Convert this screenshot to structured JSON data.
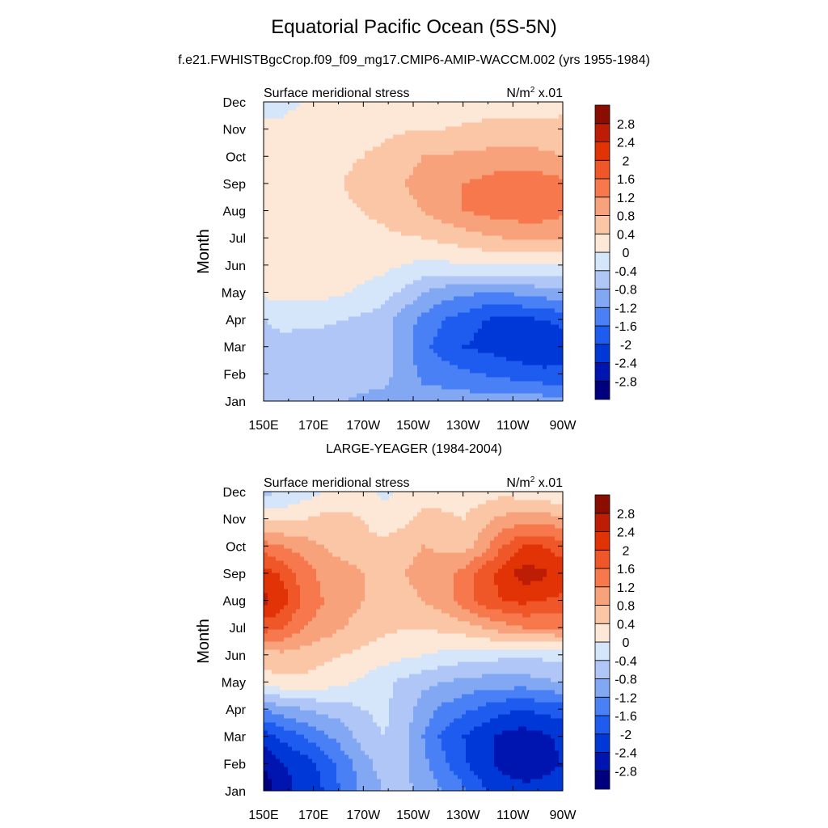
{
  "titles": {
    "main": "Equatorial Pacific Ocean (5S-5N)",
    "subtitle": "f.e21.FWHISTBgcCrop.f09_f09_mg17.CMIP6-AMIP-WACCM.002 (yrs 1955-1984)",
    "second_panel": "LARGE-YEAGER (1984-2004)"
  },
  "chart_data": [
    {
      "type": "heatmap",
      "panel_label_left": "Surface meridional stress",
      "panel_label_right_base": "N/m",
      "panel_label_right_exp": "2",
      "panel_label_right_scale": " x.01",
      "ylabel": "Month",
      "xlabel": "",
      "x_ticks": [
        "150E",
        "170E",
        "170W",
        "150W",
        "130W",
        "110W",
        "90W"
      ],
      "x_values": [
        150,
        170,
        190,
        210,
        230,
        250,
        270
      ],
      "y_ticks": [
        "Jan",
        "Feb",
        "Mar",
        "Apr",
        "May",
        "Jun",
        "Jul",
        "Aug",
        "Sep",
        "Oct",
        "Nov",
        "Dec"
      ],
      "colorbar_labels": [
        "2.8",
        "2.4",
        "2",
        "1.6",
        "1.2",
        "0.8",
        "0.4",
        "0",
        "-0.4",
        "-0.8",
        "-1.2",
        "-1.6",
        "-2",
        "-2.4",
        "-2.8"
      ],
      "z": [
        [
          -0.6,
          -0.7,
          -0.8,
          -0.8,
          -0.8,
          -0.9,
          -0.9,
          -1.0,
          -1.0,
          -1.0,
          -1.0,
          -1.0,
          -1.0,
          -1.0,
          -1.0,
          -1.1
        ],
        [
          -0.7,
          -0.7,
          -0.7,
          -0.6,
          -0.6,
          -0.6,
          -0.7,
          -0.9,
          -1.3,
          -1.4,
          -1.5,
          -1.6,
          -1.7,
          -1.8,
          -1.9,
          -1.9
        ],
        [
          -0.6,
          -0.5,
          -0.6,
          -0.7,
          -0.6,
          -0.5,
          -0.6,
          -1.0,
          -1.5,
          -1.8,
          -2.0,
          -2.1,
          -2.2,
          -2.3,
          -2.3,
          -2.2
        ],
        [
          -0.4,
          -0.3,
          -0.3,
          -0.3,
          -0.4,
          -0.5,
          -0.6,
          -1.0,
          -1.3,
          -1.6,
          -1.8,
          -2.0,
          -2.1,
          -2.1,
          -2.0,
          -1.9
        ],
        [
          0.1,
          0.1,
          0.1,
          0.1,
          0.05,
          -0.1,
          -0.2,
          -0.5,
          -0.8,
          -1.0,
          -1.1,
          -1.2,
          -1.2,
          -1.1,
          -1.0,
          -0.9
        ],
        [
          0.1,
          0.15,
          0.2,
          0.2,
          0.2,
          0.15,
          0.1,
          0.0,
          -0.1,
          -0.1,
          -0.05,
          0.0,
          0.0,
          0.0,
          0.0,
          0.0
        ],
        [
          0.2,
          0.25,
          0.3,
          0.3,
          0.3,
          0.3,
          0.3,
          0.35,
          0.4,
          0.5,
          0.6,
          0.7,
          0.8,
          0.9,
          0.9,
          0.8
        ],
        [
          0.3,
          0.3,
          0.3,
          0.35,
          0.35,
          0.4,
          0.5,
          0.7,
          0.8,
          1.0,
          1.2,
          1.3,
          1.4,
          1.4,
          1.4,
          1.3
        ],
        [
          0.3,
          0.25,
          0.3,
          0.35,
          0.4,
          0.5,
          0.6,
          0.8,
          0.9,
          1.0,
          1.2,
          1.3,
          1.4,
          1.4,
          1.4,
          1.3
        ],
        [
          0.25,
          0.2,
          0.25,
          0.3,
          0.35,
          0.4,
          0.5,
          0.7,
          0.8,
          0.8,
          0.9,
          0.9,
          1.0,
          1.0,
          0.9,
          0.8
        ],
        [
          0.1,
          0.1,
          0.15,
          0.2,
          0.25,
          0.3,
          0.3,
          0.35,
          0.4,
          0.4,
          0.45,
          0.5,
          0.5,
          0.5,
          0.5,
          0.5
        ],
        [
          -0.2,
          -0.1,
          0.0,
          0.1,
          0.1,
          0.15,
          0.2,
          0.2,
          0.2,
          0.2,
          0.2,
          0.2,
          0.2,
          0.2,
          0.25,
          0.3
        ]
      ]
    },
    {
      "type": "heatmap",
      "panel_label_left": "Surface meridional stress",
      "panel_label_right_base": "N/m",
      "panel_label_right_exp": "2",
      "panel_label_right_scale": " x.01",
      "ylabel": "Month",
      "xlabel": "",
      "x_ticks": [
        "150E",
        "170E",
        "170W",
        "150W",
        "130W",
        "110W",
        "90W"
      ],
      "x_values": [
        150,
        170,
        190,
        210,
        230,
        250,
        270
      ],
      "y_ticks": [
        "Jan",
        "Feb",
        "Mar",
        "Apr",
        "May",
        "Jun",
        "Jul",
        "Aug",
        "Sep",
        "Oct",
        "Nov",
        "Dec"
      ],
      "colorbar_labels": [
        "2.8",
        "2.4",
        "2",
        "1.6",
        "1.2",
        "0.8",
        "0.4",
        "0",
        "-0.4",
        "-0.8",
        "-1.2",
        "-1.6",
        "-2",
        "-2.4",
        "-2.8"
      ],
      "z": [
        [
          -3.0,
          -2.6,
          -2.2,
          -2.0,
          -1.5,
          -1.1,
          -0.8,
          -0.7,
          -0.9,
          -1.2,
          -1.5,
          -1.9,
          -2.2,
          -2.3,
          -2.3,
          -2.2
        ],
        [
          -2.8,
          -2.4,
          -2.2,
          -1.9,
          -1.4,
          -1.0,
          -0.6,
          -0.7,
          -1.1,
          -1.5,
          -1.9,
          -2.3,
          -2.5,
          -2.6,
          -2.5,
          -2.4
        ],
        [
          -2.2,
          -1.9,
          -1.6,
          -1.3,
          -1.0,
          -0.6,
          -0.4,
          -0.6,
          -1.2,
          -1.7,
          -2.0,
          -2.3,
          -2.5,
          -2.6,
          -2.5,
          -2.3
        ],
        [
          -1.2,
          -1.0,
          -0.8,
          -0.7,
          -0.6,
          -0.4,
          -0.3,
          -0.6,
          -1.0,
          -1.3,
          -1.5,
          -1.7,
          -1.9,
          -2.0,
          -1.9,
          -1.8
        ],
        [
          0.2,
          0.3,
          0.3,
          0.2,
          0.1,
          -0.1,
          -0.3,
          -0.5,
          -0.7,
          -0.8,
          -0.9,
          -1.0,
          -1.0,
          -1.0,
          -0.9,
          -0.8
        ],
        [
          0.6,
          0.7,
          0.6,
          0.5,
          0.4,
          0.3,
          0.2,
          0.1,
          0.0,
          -0.1,
          -0.2,
          -0.2,
          -0.3,
          -0.3,
          -0.3,
          -0.2
        ],
        [
          1.8,
          1.6,
          1.2,
          1.0,
          0.8,
          0.6,
          0.5,
          0.4,
          0.4,
          0.5,
          0.6,
          0.8,
          1.0,
          1.2,
          1.2,
          1.2
        ],
        [
          2.5,
          2.2,
          1.5,
          1.2,
          1.0,
          0.8,
          0.6,
          0.6,
          0.8,
          1.0,
          1.4,
          1.8,
          2.0,
          2.1,
          2.0,
          1.9
        ],
        [
          2.2,
          1.9,
          1.4,
          1.1,
          1.0,
          0.8,
          0.6,
          0.8,
          1.0,
          1.1,
          1.3,
          1.8,
          2.2,
          2.6,
          2.5,
          2.2
        ],
        [
          1.4,
          1.2,
          1.0,
          0.8,
          0.6,
          0.5,
          0.5,
          0.6,
          0.8,
          0.7,
          0.6,
          1.0,
          1.6,
          2.0,
          2.0,
          1.8
        ],
        [
          0.3,
          0.3,
          0.4,
          0.5,
          0.5,
          0.4,
          0.2,
          0.3,
          0.5,
          0.5,
          0.4,
          0.7,
          0.9,
          1.0,
          1.0,
          0.9
        ],
        [
          -0.5,
          -0.4,
          -0.2,
          0.0,
          0.2,
          0.1,
          -0.1,
          0.1,
          0.2,
          0.2,
          0.1,
          0.2,
          0.3,
          0.2,
          0.1,
          0.0
        ]
      ]
    }
  ],
  "colors": {
    "levels": [
      "#00007f",
      "#0015af",
      "#0038d8",
      "#1e5cf0",
      "#4a80f5",
      "#82a8f3",
      "#afc6f7",
      "#d6e6fa",
      "#fde7d6",
      "#fbc6a6",
      "#f8a27c",
      "#f6784c",
      "#ef5628",
      "#e23307",
      "#bc1d04",
      "#8a0d00"
    ]
  }
}
